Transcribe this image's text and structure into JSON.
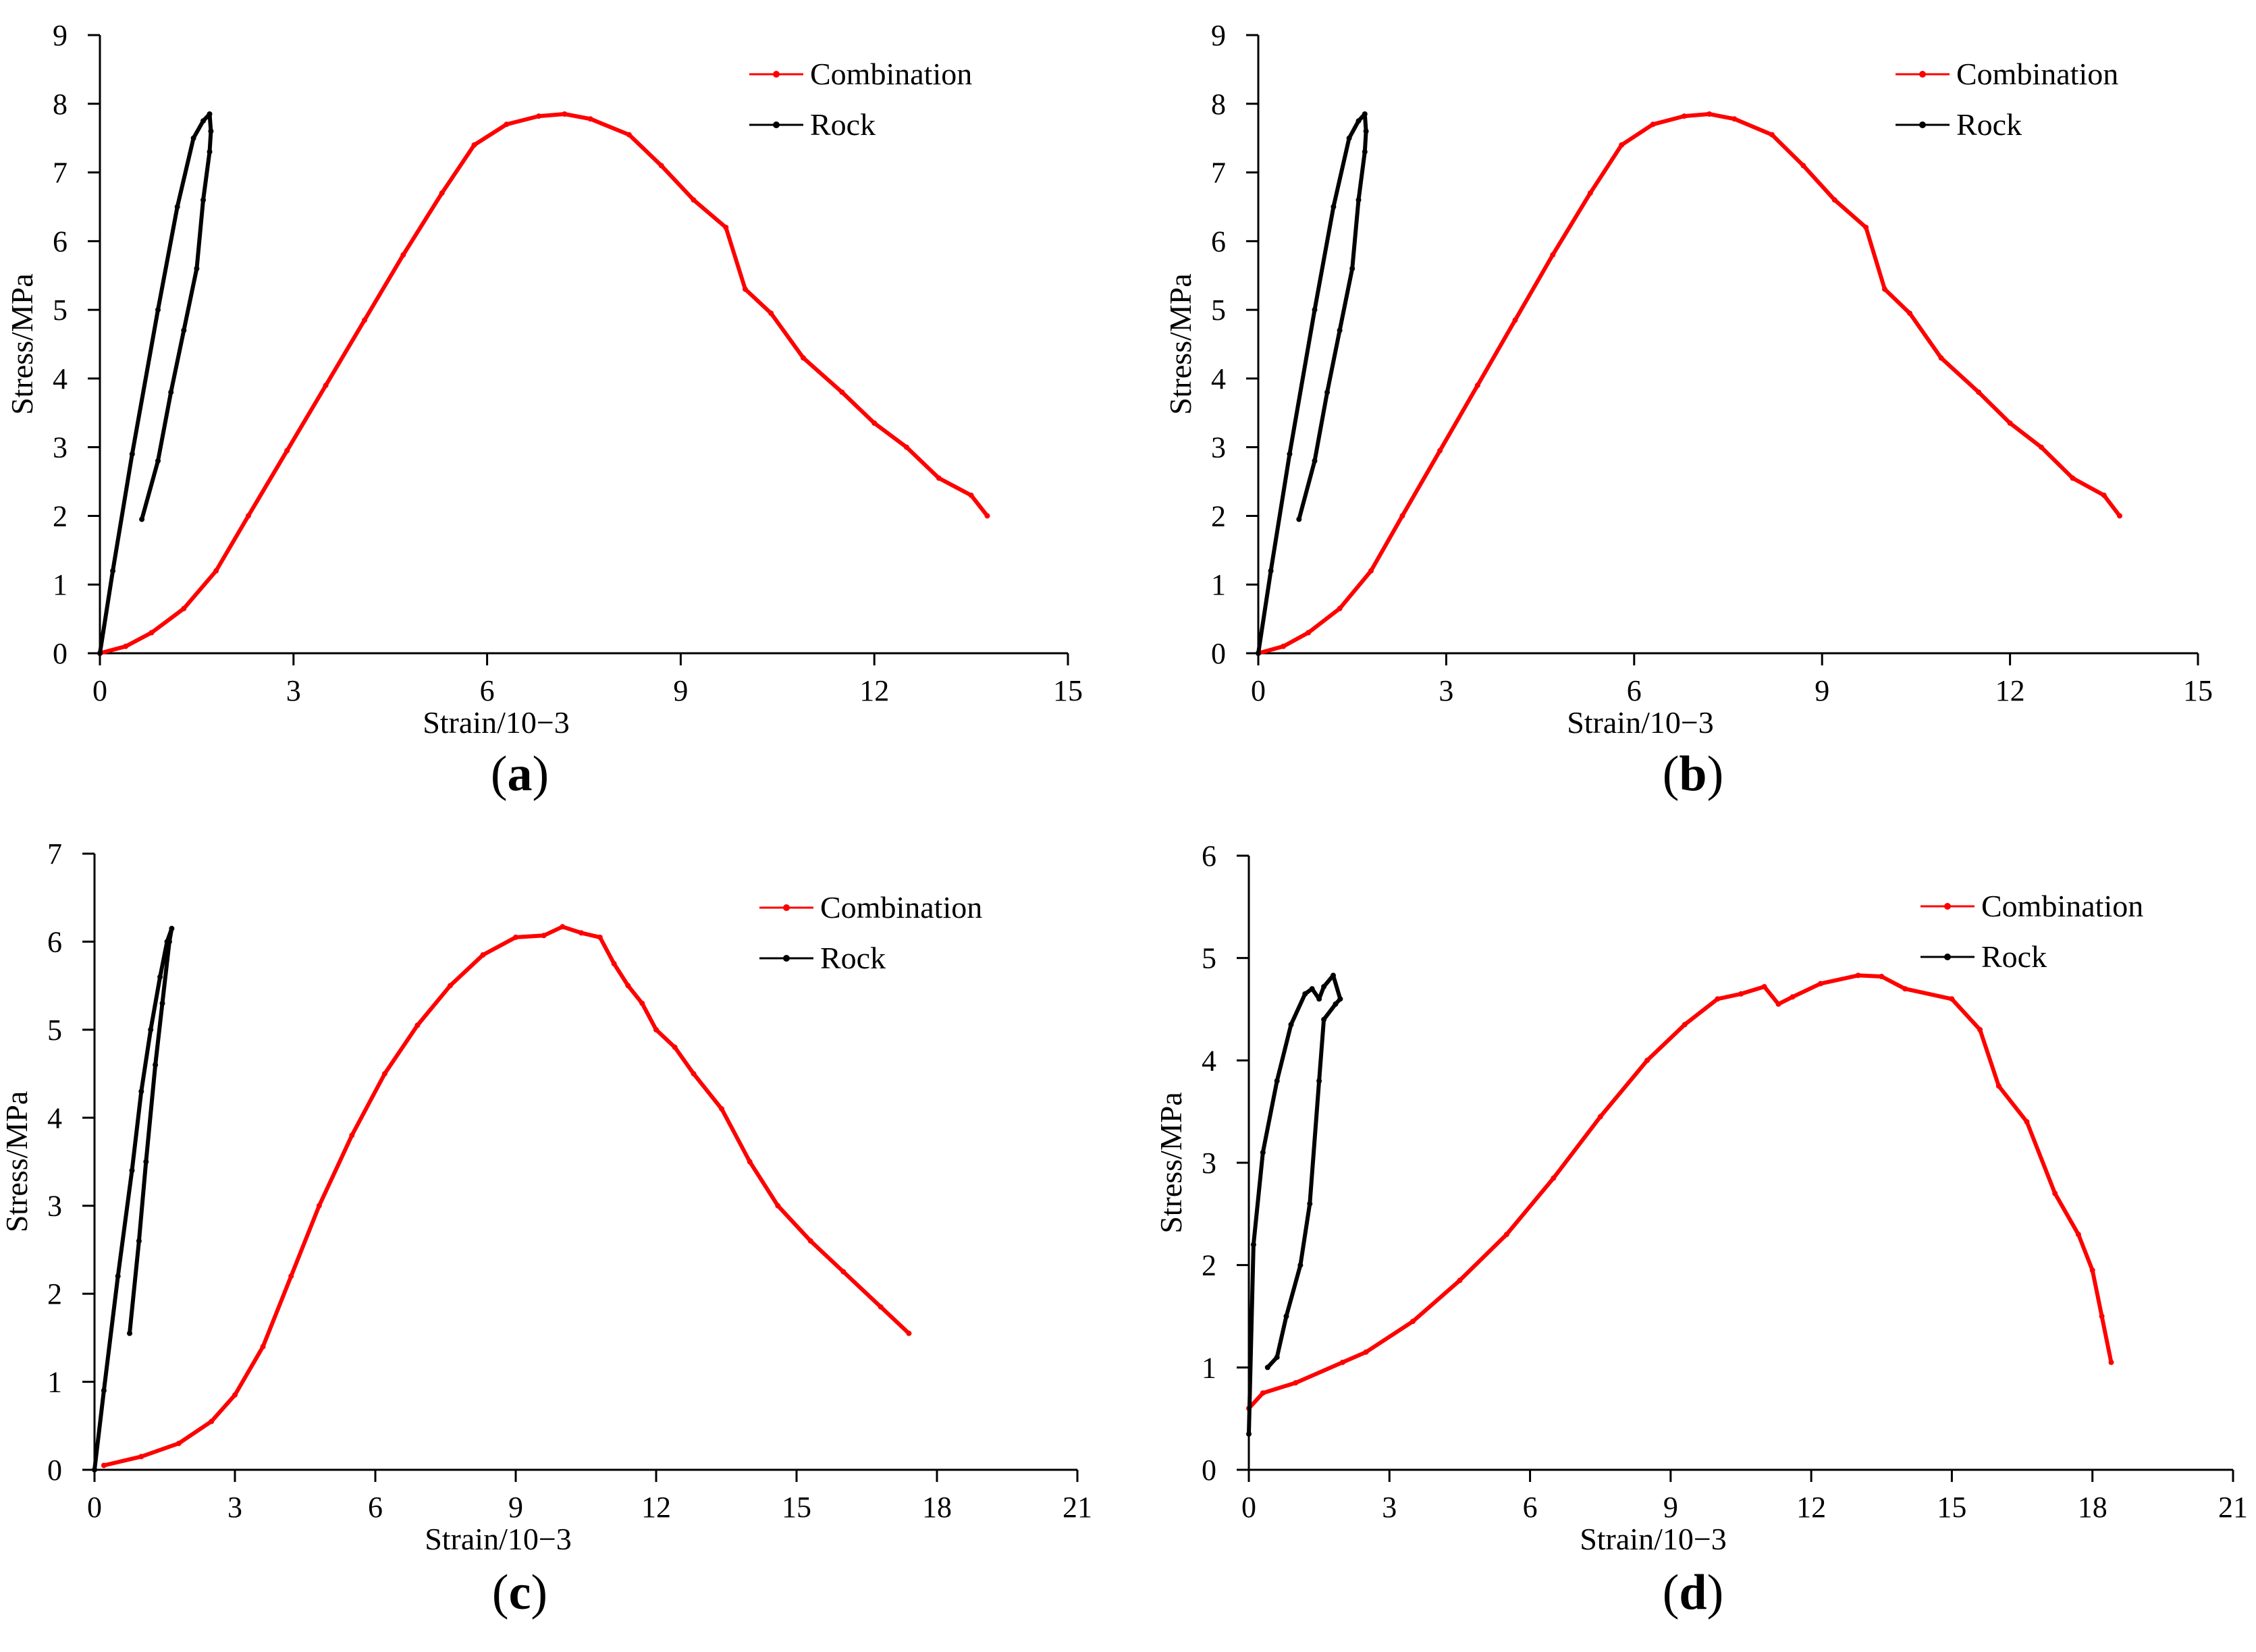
{
  "figure": {
    "panel_labels": [
      "a",
      "b",
      "c",
      "d"
    ]
  },
  "chart_data": [
    {
      "id": "a",
      "type": "line",
      "xlabel": "Strain/10−3",
      "ylabel": "Stress/MPa",
      "xlim": [
        0,
        15
      ],
      "ylim": [
        0,
        9
      ],
      "xticks": [
        0,
        3,
        6,
        9,
        12,
        15
      ],
      "yticks": [
        0,
        1,
        2,
        3,
        4,
        5,
        6,
        7,
        8,
        9
      ],
      "grid": false,
      "legend": "top-right",
      "series": [
        {
          "name": "Combination",
          "color": "#ff0000",
          "x": [
            0,
            0.4,
            0.8,
            1.3,
            1.8,
            2.3,
            2.9,
            3.5,
            4.1,
            4.7,
            5.3,
            5.8,
            6.3,
            6.8,
            7.2,
            7.6,
            8.2,
            8.7,
            9.2,
            9.7,
            10.0,
            10.4,
            10.9,
            11.5,
            12.0,
            12.5,
            13.0,
            13.5,
            13.75
          ],
          "y": [
            0,
            0.1,
            0.3,
            0.65,
            1.2,
            2.0,
            2.95,
            3.9,
            4.85,
            5.8,
            6.7,
            7.4,
            7.7,
            7.82,
            7.85,
            7.78,
            7.55,
            7.1,
            6.6,
            6.2,
            5.3,
            4.95,
            4.3,
            3.8,
            3.35,
            3.0,
            2.55,
            2.3,
            2.0
          ]
        },
        {
          "name": "Rock",
          "color": "#000000",
          "x": [
            0,
            0.2,
            0.5,
            0.9,
            1.2,
            1.45,
            1.6,
            1.7,
            1.72,
            1.7,
            1.6,
            1.5,
            1.3,
            1.1,
            0.9,
            0.65
          ],
          "y": [
            0,
            1.2,
            2.9,
            5.0,
            6.5,
            7.5,
            7.75,
            7.85,
            7.6,
            7.3,
            6.6,
            5.6,
            4.7,
            3.8,
            2.8,
            1.95
          ]
        }
      ]
    },
    {
      "id": "b",
      "type": "line",
      "xlabel": "Strain/10−3",
      "ylabel": "Stress/MPa",
      "xlim": [
        0,
        15
      ],
      "ylim": [
        0,
        9
      ],
      "xticks": [
        0,
        3,
        6,
        9,
        12,
        15
      ],
      "yticks": [
        0,
        1,
        2,
        3,
        4,
        5,
        6,
        7,
        8,
        9
      ],
      "grid": false,
      "legend": "top-right",
      "series": [
        {
          "name": "Combination",
          "color": "#ff0000",
          "x": [
            0,
            0.4,
            0.8,
            1.3,
            1.8,
            2.3,
            2.9,
            3.5,
            4.1,
            4.7,
            5.3,
            5.8,
            6.3,
            6.8,
            7.2,
            7.6,
            8.2,
            8.7,
            9.2,
            9.7,
            10.0,
            10.4,
            10.9,
            11.5,
            12.0,
            12.5,
            13.0,
            13.5,
            13.75
          ],
          "y": [
            0,
            0.1,
            0.3,
            0.65,
            1.2,
            2.0,
            2.95,
            3.9,
            4.85,
            5.8,
            6.7,
            7.4,
            7.7,
            7.82,
            7.85,
            7.78,
            7.55,
            7.1,
            6.6,
            6.2,
            5.3,
            4.95,
            4.3,
            3.8,
            3.35,
            3.0,
            2.55,
            2.3,
            2.0
          ]
        },
        {
          "name": "Rock",
          "color": "#000000",
          "x": [
            0,
            0.2,
            0.5,
            0.9,
            1.2,
            1.45,
            1.6,
            1.7,
            1.72,
            1.7,
            1.6,
            1.5,
            1.3,
            1.1,
            0.9,
            0.65
          ],
          "y": [
            0,
            1.2,
            2.9,
            5.0,
            6.5,
            7.5,
            7.75,
            7.85,
            7.6,
            7.3,
            6.6,
            5.6,
            4.7,
            3.8,
            2.8,
            1.95
          ]
        }
      ]
    },
    {
      "id": "c",
      "type": "line",
      "xlabel": "Strain/10−3",
      "ylabel": "Stress/MPa",
      "xlim": [
        0,
        21
      ],
      "ylim": [
        0,
        7
      ],
      "xticks": [
        0,
        3,
        6,
        9,
        12,
        15,
        18,
        21
      ],
      "yticks": [
        0,
        1,
        2,
        3,
        4,
        5,
        6,
        7
      ],
      "grid": false,
      "legend": "top-right",
      "series": [
        {
          "name": "Combination",
          "color": "#ff0000",
          "x": [
            0.2,
            1.0,
            1.8,
            2.5,
            3.0,
            3.6,
            4.2,
            4.8,
            5.5,
            6.2,
            6.9,
            7.6,
            8.3,
            9.0,
            9.6,
            10.0,
            10.4,
            10.8,
            11.1,
            11.4,
            11.7,
            12.0,
            12.4,
            12.8,
            13.4,
            14.0,
            14.6,
            15.3,
            16.0,
            16.8,
            17.4
          ],
          "y": [
            0.05,
            0.15,
            0.3,
            0.55,
            0.85,
            1.4,
            2.2,
            3.0,
            3.8,
            4.5,
            5.05,
            5.5,
            5.85,
            6.05,
            6.07,
            6.17,
            6.1,
            6.05,
            5.75,
            5.5,
            5.3,
            5.0,
            4.8,
            4.5,
            4.1,
            3.5,
            3.0,
            2.6,
            2.25,
            1.85,
            1.55
          ]
        },
        {
          "name": "Rock",
          "color": "#000000",
          "x": [
            0,
            0.2,
            0.5,
            0.8,
            1.0,
            1.2,
            1.4,
            1.55,
            1.65,
            1.6,
            1.45,
            1.3,
            1.1,
            0.95,
            0.75
          ],
          "y": [
            0,
            0.9,
            2.2,
            3.4,
            4.3,
            5.0,
            5.6,
            6.0,
            6.15,
            6.0,
            5.3,
            4.6,
            3.5,
            2.6,
            1.55
          ]
        }
      ]
    },
    {
      "id": "d",
      "type": "line",
      "xlabel": "Strain/10−3",
      "ylabel": "Stress/MPa",
      "xlim": [
        0,
        21
      ],
      "ylim": [
        0,
        6
      ],
      "xticks": [
        0,
        3,
        6,
        9,
        12,
        15,
        18,
        21
      ],
      "yticks": [
        0,
        1,
        2,
        3,
        4,
        5,
        6
      ],
      "grid": false,
      "legend": "top-right",
      "series": [
        {
          "name": "Combination",
          "color": "#ff0000",
          "x": [
            0,
            0.3,
            1.0,
            2.0,
            2.5,
            3.5,
            4.5,
            5.5,
            6.5,
            7.5,
            8.5,
            9.3,
            10.0,
            10.5,
            11.0,
            11.3,
            11.6,
            12.2,
            13.0,
            13.5,
            14.0,
            15.0,
            15.6,
            16.0,
            16.6,
            17.2,
            17.7,
            18.0,
            18.2,
            18.4
          ],
          "y": [
            0.6,
            0.75,
            0.85,
            1.05,
            1.15,
            1.45,
            1.85,
            2.3,
            2.85,
            3.45,
            4.0,
            4.35,
            4.6,
            4.65,
            4.72,
            4.55,
            4.62,
            4.75,
            4.83,
            4.82,
            4.7,
            4.6,
            4.3,
            3.75,
            3.4,
            2.7,
            2.3,
            1.95,
            1.5,
            1.05
          ]
        },
        {
          "name": "Rock",
          "color": "#000000",
          "x": [
            0,
            0.1,
            0.3,
            0.6,
            0.9,
            1.2,
            1.35,
            1.5,
            1.6,
            1.8,
            1.95,
            1.85,
            1.6,
            1.5,
            1.3,
            1.1,
            0.8,
            0.6,
            0.4
          ],
          "y": [
            0.35,
            2.2,
            3.1,
            3.8,
            4.35,
            4.65,
            4.7,
            4.6,
            4.72,
            4.83,
            4.6,
            4.55,
            4.4,
            3.8,
            2.6,
            2.0,
            1.5,
            1.1,
            1.0
          ]
        }
      ]
    }
  ]
}
